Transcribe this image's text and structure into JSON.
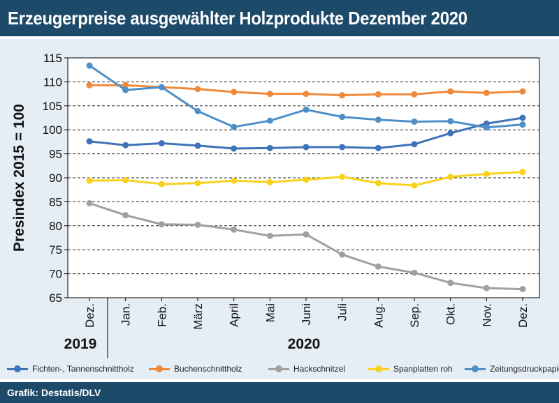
{
  "title": "Erzeugerpreise ausgewählter Holzprodukte Dezember 2020",
  "source": "Grafik: Destatis/DLV",
  "chart_data": {
    "type": "line",
    "ylabel": "Presindex 2015 = 100",
    "ylim": [
      65,
      115
    ],
    "yticks": [
      65,
      70,
      75,
      80,
      85,
      90,
      95,
      100,
      105,
      110,
      115
    ],
    "categories": [
      "Dez.",
      "Jan.",
      "Feb.",
      "März",
      "April",
      "Mai",
      "Juni",
      "Juli",
      "Aug.",
      "Sep.",
      "Okt.",
      "Nov.",
      "Dez."
    ],
    "year_labels": [
      "2019",
      "2020"
    ],
    "grid": true,
    "legend_position": "bottom",
    "series": [
      {
        "name": "Fichten-, Tannenschnittholz",
        "color": "#3f73b8",
        "values": [
          97.6,
          96.8,
          97.2,
          96.7,
          96.1,
          96.2,
          96.4,
          96.4,
          96.2,
          97.0,
          99.3,
          101.3,
          102.5
        ]
      },
      {
        "name": "Buchenschnittholz",
        "color": "#ef8a3c",
        "values": [
          109.3,
          109.3,
          108.9,
          108.5,
          107.9,
          107.5,
          107.5,
          107.2,
          107.4,
          107.4,
          108.0,
          107.7,
          108.0
        ]
      },
      {
        "name": "Hackschnitzel",
        "color": "#a0a0a0",
        "values": [
          84.7,
          82.2,
          80.3,
          80.2,
          79.2,
          77.9,
          78.2,
          74.0,
          71.5,
          70.2,
          68.1,
          67.0,
          66.8
        ]
      },
      {
        "name": "Spanplatten roh",
        "color": "#f8d21c",
        "values": [
          89.4,
          89.5,
          88.7,
          88.9,
          89.4,
          89.1,
          89.6,
          90.2,
          88.9,
          88.4,
          90.2,
          90.8,
          91.2
        ]
      },
      {
        "name": "Zeitungsdruckpapier",
        "color": "#4d8fc7",
        "values": [
          113.4,
          108.3,
          108.9,
          103.9,
          100.6,
          101.9,
          104.2,
          102.7,
          102.1,
          101.7,
          101.8,
          100.5,
          101.1
        ]
      }
    ]
  }
}
